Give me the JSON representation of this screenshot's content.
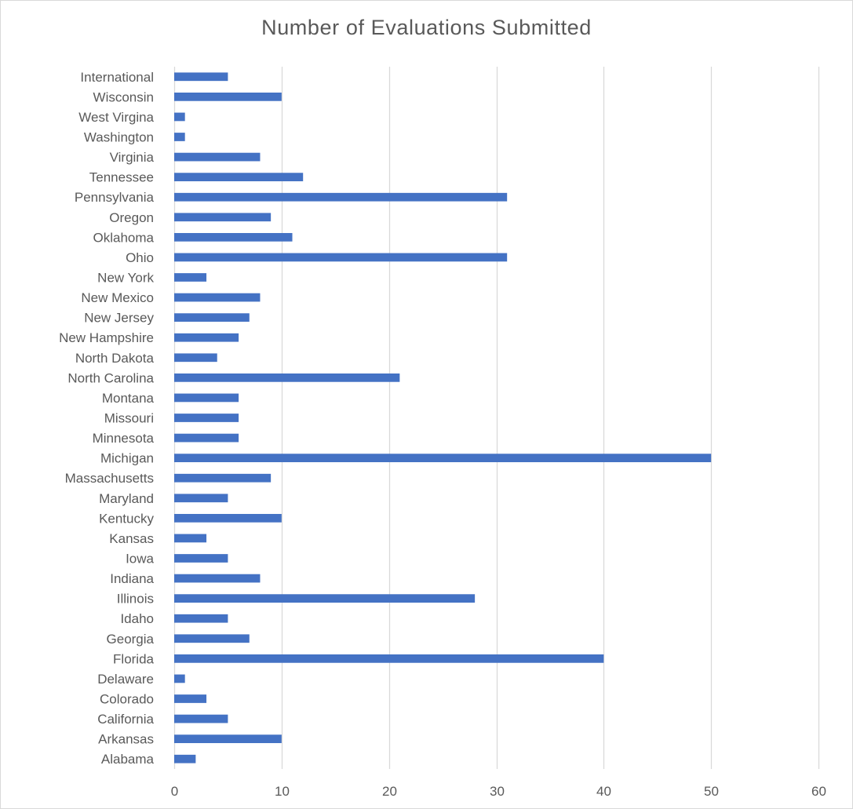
{
  "chart_data": {
    "type": "bar",
    "orientation": "horizontal",
    "title": "Number of Evaluations Submitted",
    "xlabel": "",
    "ylabel": "",
    "xlim": [
      0,
      60
    ],
    "x_ticks": [
      0,
      10,
      20,
      30,
      40,
      50,
      60
    ],
    "grid": "vertical",
    "legend": "none",
    "bar_color": "#4472C4",
    "categories": [
      "Alabama",
      "Arkansas",
      "California",
      "Colorado",
      "Delaware",
      "Florida",
      "Georgia",
      "Idaho",
      "Illinois",
      "Indiana",
      "Iowa",
      "Kansas",
      "Kentucky",
      "Maryland",
      "Massachusetts",
      "Michigan",
      "Minnesota",
      "Missouri",
      "Montana",
      "North Carolina",
      "North Dakota",
      "New Hampshire",
      "New Jersey",
      "New Mexico",
      "New York",
      "Ohio",
      "Oklahoma",
      "Oregon",
      "Pennsylvania",
      "Tennessee",
      "Virginia",
      "Washington",
      "West Virgina",
      "Wisconsin",
      "International"
    ],
    "values": [
      2,
      10,
      5,
      3,
      1,
      40,
      7,
      5,
      28,
      8,
      5,
      3,
      10,
      5,
      9,
      50,
      6,
      6,
      6,
      21,
      4,
      6,
      7,
      8,
      3,
      31,
      11,
      9,
      31,
      12,
      8,
      1,
      1,
      10,
      5
    ]
  }
}
